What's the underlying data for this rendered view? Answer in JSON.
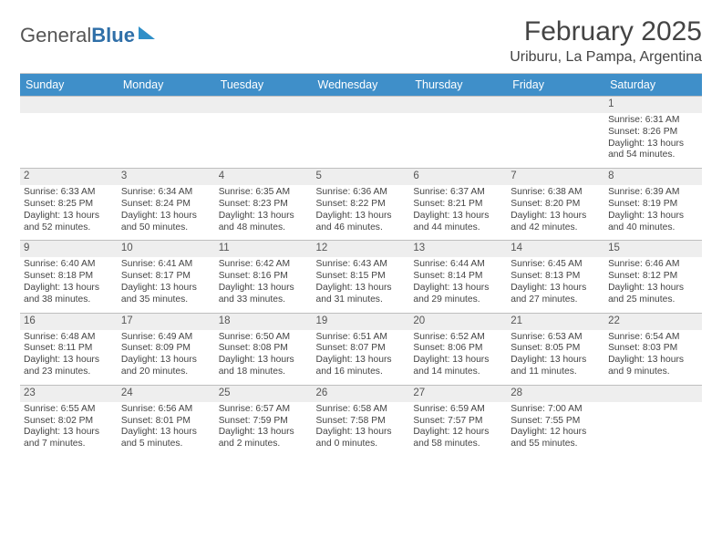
{
  "logo": {
    "text1": "General",
    "text2": "Blue"
  },
  "title": "February 2025",
  "location": "Uriburu, La Pampa, Argentina",
  "colors": {
    "header_bg": "#3f8fc9",
    "header_text": "#ffffff",
    "daynum_bg": "#eeeeee",
    "border": "#bfbfbf",
    "text": "#444444"
  },
  "header_fontsize": 30,
  "location_fontsize": 16,
  "dayheader_fontsize": 12.5,
  "daynum_fontsize": 11.5,
  "body_fontsize": 10.3,
  "daynames": [
    "Sunday",
    "Monday",
    "Tuesday",
    "Wednesday",
    "Thursday",
    "Friday",
    "Saturday"
  ],
  "weeks": [
    [
      null,
      null,
      null,
      null,
      null,
      null,
      {
        "n": "1",
        "sunrise": "Sunrise: 6:31 AM",
        "sunset": "Sunset: 8:26 PM",
        "daylight": "Daylight: 13 hours and 54 minutes."
      }
    ],
    [
      {
        "n": "2",
        "sunrise": "Sunrise: 6:33 AM",
        "sunset": "Sunset: 8:25 PM",
        "daylight": "Daylight: 13 hours and 52 minutes."
      },
      {
        "n": "3",
        "sunrise": "Sunrise: 6:34 AM",
        "sunset": "Sunset: 8:24 PM",
        "daylight": "Daylight: 13 hours and 50 minutes."
      },
      {
        "n": "4",
        "sunrise": "Sunrise: 6:35 AM",
        "sunset": "Sunset: 8:23 PM",
        "daylight": "Daylight: 13 hours and 48 minutes."
      },
      {
        "n": "5",
        "sunrise": "Sunrise: 6:36 AM",
        "sunset": "Sunset: 8:22 PM",
        "daylight": "Daylight: 13 hours and 46 minutes."
      },
      {
        "n": "6",
        "sunrise": "Sunrise: 6:37 AM",
        "sunset": "Sunset: 8:21 PM",
        "daylight": "Daylight: 13 hours and 44 minutes."
      },
      {
        "n": "7",
        "sunrise": "Sunrise: 6:38 AM",
        "sunset": "Sunset: 8:20 PM",
        "daylight": "Daylight: 13 hours and 42 minutes."
      },
      {
        "n": "8",
        "sunrise": "Sunrise: 6:39 AM",
        "sunset": "Sunset: 8:19 PM",
        "daylight": "Daylight: 13 hours and 40 minutes."
      }
    ],
    [
      {
        "n": "9",
        "sunrise": "Sunrise: 6:40 AM",
        "sunset": "Sunset: 8:18 PM",
        "daylight": "Daylight: 13 hours and 38 minutes."
      },
      {
        "n": "10",
        "sunrise": "Sunrise: 6:41 AM",
        "sunset": "Sunset: 8:17 PM",
        "daylight": "Daylight: 13 hours and 35 minutes."
      },
      {
        "n": "11",
        "sunrise": "Sunrise: 6:42 AM",
        "sunset": "Sunset: 8:16 PM",
        "daylight": "Daylight: 13 hours and 33 minutes."
      },
      {
        "n": "12",
        "sunrise": "Sunrise: 6:43 AM",
        "sunset": "Sunset: 8:15 PM",
        "daylight": "Daylight: 13 hours and 31 minutes."
      },
      {
        "n": "13",
        "sunrise": "Sunrise: 6:44 AM",
        "sunset": "Sunset: 8:14 PM",
        "daylight": "Daylight: 13 hours and 29 minutes."
      },
      {
        "n": "14",
        "sunrise": "Sunrise: 6:45 AM",
        "sunset": "Sunset: 8:13 PM",
        "daylight": "Daylight: 13 hours and 27 minutes."
      },
      {
        "n": "15",
        "sunrise": "Sunrise: 6:46 AM",
        "sunset": "Sunset: 8:12 PM",
        "daylight": "Daylight: 13 hours and 25 minutes."
      }
    ],
    [
      {
        "n": "16",
        "sunrise": "Sunrise: 6:48 AM",
        "sunset": "Sunset: 8:11 PM",
        "daylight": "Daylight: 13 hours and 23 minutes."
      },
      {
        "n": "17",
        "sunrise": "Sunrise: 6:49 AM",
        "sunset": "Sunset: 8:09 PM",
        "daylight": "Daylight: 13 hours and 20 minutes."
      },
      {
        "n": "18",
        "sunrise": "Sunrise: 6:50 AM",
        "sunset": "Sunset: 8:08 PM",
        "daylight": "Daylight: 13 hours and 18 minutes."
      },
      {
        "n": "19",
        "sunrise": "Sunrise: 6:51 AM",
        "sunset": "Sunset: 8:07 PM",
        "daylight": "Daylight: 13 hours and 16 minutes."
      },
      {
        "n": "20",
        "sunrise": "Sunrise: 6:52 AM",
        "sunset": "Sunset: 8:06 PM",
        "daylight": "Daylight: 13 hours and 14 minutes."
      },
      {
        "n": "21",
        "sunrise": "Sunrise: 6:53 AM",
        "sunset": "Sunset: 8:05 PM",
        "daylight": "Daylight: 13 hours and 11 minutes."
      },
      {
        "n": "22",
        "sunrise": "Sunrise: 6:54 AM",
        "sunset": "Sunset: 8:03 PM",
        "daylight": "Daylight: 13 hours and 9 minutes."
      }
    ],
    [
      {
        "n": "23",
        "sunrise": "Sunrise: 6:55 AM",
        "sunset": "Sunset: 8:02 PM",
        "daylight": "Daylight: 13 hours and 7 minutes."
      },
      {
        "n": "24",
        "sunrise": "Sunrise: 6:56 AM",
        "sunset": "Sunset: 8:01 PM",
        "daylight": "Daylight: 13 hours and 5 minutes."
      },
      {
        "n": "25",
        "sunrise": "Sunrise: 6:57 AM",
        "sunset": "Sunset: 7:59 PM",
        "daylight": "Daylight: 13 hours and 2 minutes."
      },
      {
        "n": "26",
        "sunrise": "Sunrise: 6:58 AM",
        "sunset": "Sunset: 7:58 PM",
        "daylight": "Daylight: 13 hours and 0 minutes."
      },
      {
        "n": "27",
        "sunrise": "Sunrise: 6:59 AM",
        "sunset": "Sunset: 7:57 PM",
        "daylight": "Daylight: 12 hours and 58 minutes."
      },
      {
        "n": "28",
        "sunrise": "Sunrise: 7:00 AM",
        "sunset": "Sunset: 7:55 PM",
        "daylight": "Daylight: 12 hours and 55 minutes."
      },
      null
    ]
  ]
}
